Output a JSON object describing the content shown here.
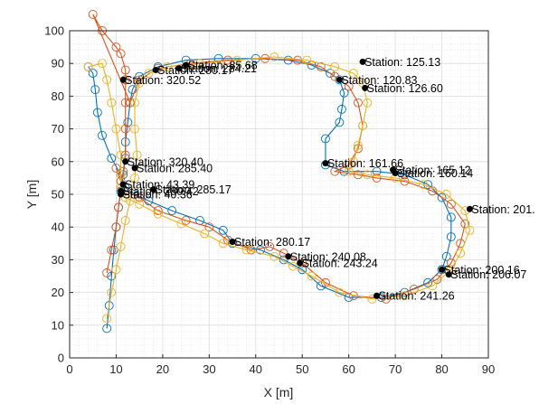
{
  "chart_data": {
    "type": "line",
    "title": "",
    "xlabel": "X [m]",
    "ylabel": "Y [m]",
    "xlim": [
      0,
      90
    ],
    "ylim": [
      0,
      100
    ],
    "xticks": [
      0,
      10,
      20,
      30,
      40,
      50,
      60,
      70,
      80,
      90
    ],
    "yticks": [
      0,
      10,
      20,
      30,
      40,
      50,
      60,
      70,
      80,
      90,
      100
    ],
    "grid": "major and minor",
    "legend": "none",
    "series": [
      {
        "color": "#0072BD",
        "marker": "circle",
        "points": [
          [
            8,
            9
          ],
          [
            8.5,
            16
          ],
          [
            9,
            25
          ],
          [
            9.5,
            33
          ],
          [
            10,
            40
          ],
          [
            10.5,
            46
          ],
          [
            11,
            51
          ],
          [
            11.5,
            56
          ],
          [
            12,
            61
          ],
          [
            12,
            66
          ],
          [
            12.5,
            72
          ],
          [
            13,
            78
          ],
          [
            13.5,
            82
          ],
          [
            15,
            86
          ],
          [
            19,
            89
          ],
          [
            25,
            91
          ],
          [
            32,
            91.5
          ],
          [
            40,
            91.5
          ],
          [
            47,
            91
          ],
          [
            52,
            89.5
          ],
          [
            56,
            87
          ],
          [
            58,
            85
          ],
          [
            59,
            81
          ],
          [
            58.5,
            76
          ],
          [
            58,
            72
          ],
          [
            55,
            67
          ],
          [
            55,
            59
          ],
          [
            59,
            57
          ],
          [
            66,
            57
          ],
          [
            72,
            56
          ],
          [
            77,
            53
          ],
          [
            80,
            49
          ],
          [
            82,
            43
          ],
          [
            82,
            37
          ],
          [
            81,
            31
          ],
          [
            80,
            27
          ],
          [
            77,
            23
          ],
          [
            72,
            20
          ],
          [
            67,
            18.5
          ],
          [
            60,
            18.5
          ],
          [
            54,
            22
          ],
          [
            50,
            27
          ],
          [
            46,
            30
          ],
          [
            41,
            33
          ],
          [
            35,
            35
          ],
          [
            33,
            39
          ],
          [
            28,
            42
          ],
          [
            22,
            45
          ],
          [
            17,
            48
          ],
          [
            14,
            50
          ],
          [
            12,
            52
          ],
          [
            11,
            56
          ],
          [
            9,
            61
          ],
          [
            7,
            68
          ],
          [
            6,
            75
          ],
          [
            5.5,
            82
          ],
          [
            5,
            87
          ],
          [
            4,
            89
          ]
        ]
      },
      {
        "color": "#D95319",
        "marker": "circle",
        "points": [
          [
            8,
            26
          ],
          [
            9,
            33
          ],
          [
            10,
            40
          ],
          [
            10.5,
            46
          ],
          [
            11,
            52
          ],
          [
            11.5,
            57
          ],
          [
            12,
            62
          ],
          [
            12,
            70
          ],
          [
            12,
            78
          ],
          [
            12,
            85
          ],
          [
            12,
            88
          ],
          [
            11,
            93
          ],
          [
            10,
            95
          ],
          [
            7,
            100
          ],
          [
            5,
            105
          ],
          [
            13,
            78
          ],
          [
            15,
            85
          ],
          [
            19,
            88.5
          ],
          [
            26,
            90
          ],
          [
            34,
            91
          ],
          [
            42,
            91.5
          ],
          [
            49,
            91
          ],
          [
            54,
            89
          ],
          [
            57,
            86
          ],
          [
            60,
            83
          ],
          [
            62,
            78
          ],
          [
            63,
            71
          ],
          [
            62,
            64
          ],
          [
            60,
            59
          ],
          [
            57,
            57
          ],
          [
            62,
            56
          ],
          [
            66,
            55
          ],
          [
            72,
            54
          ],
          [
            78,
            51
          ],
          [
            82,
            47
          ],
          [
            85,
            41
          ],
          [
            84,
            35
          ],
          [
            82,
            29
          ],
          [
            79,
            24
          ],
          [
            74,
            21
          ],
          [
            68,
            18
          ],
          [
            61,
            19
          ],
          [
            55,
            23
          ],
          [
            50,
            29
          ],
          [
            46,
            32
          ],
          [
            43,
            34
          ],
          [
            39,
            33
          ],
          [
            34,
            36
          ],
          [
            30,
            40
          ],
          [
            25,
            42
          ],
          [
            19,
            45
          ],
          [
            15,
            49
          ],
          [
            12,
            51
          ],
          [
            11,
            54
          ],
          [
            10,
            58
          ]
        ]
      },
      {
        "color": "#EDB120",
        "marker": "circle",
        "points": [
          [
            8,
            12
          ],
          [
            9,
            20
          ],
          [
            10,
            27
          ],
          [
            11,
            34
          ],
          [
            12,
            42
          ],
          [
            13,
            48
          ],
          [
            14,
            55
          ],
          [
            14.5,
            62
          ],
          [
            14,
            70
          ],
          [
            14,
            78
          ],
          [
            15,
            84
          ],
          [
            17,
            87
          ],
          [
            21,
            89
          ],
          [
            28,
            90
          ],
          [
            36,
            91
          ],
          [
            44,
            92
          ],
          [
            51,
            91
          ],
          [
            57,
            89
          ],
          [
            61,
            87
          ],
          [
            63,
            84
          ],
          [
            64,
            78
          ],
          [
            63,
            71
          ],
          [
            62,
            65
          ],
          [
            61,
            60
          ],
          [
            60,
            57
          ],
          [
            64,
            56
          ],
          [
            70,
            55
          ],
          [
            76,
            53
          ],
          [
            81,
            50
          ],
          [
            85,
            45
          ],
          [
            86,
            39
          ],
          [
            84,
            32
          ],
          [
            82,
            27
          ],
          [
            78,
            22
          ],
          [
            72,
            19
          ],
          [
            65,
            18
          ],
          [
            58,
            20
          ],
          [
            52,
            25
          ],
          [
            48,
            28
          ],
          [
            44,
            31
          ],
          [
            38,
            33
          ],
          [
            33,
            35
          ],
          [
            29,
            38
          ],
          [
            24,
            41
          ],
          [
            19,
            44
          ],
          [
            15,
            47
          ],
          [
            12,
            49
          ],
          [
            11,
            52
          ],
          [
            11,
            56
          ],
          [
            11,
            62
          ],
          [
            10,
            70
          ],
          [
            9,
            78
          ],
          [
            8,
            85
          ],
          [
            7,
            90
          ],
          [
            4,
            89
          ]
        ]
      }
    ],
    "stations": [
      {
        "label": "Station: 320.52",
        "x": 11.5,
        "y": 85
      },
      {
        "label": "Station: 280.17",
        "x": 18.5,
        "y": 88
      },
      {
        "label": "Station: 284.21",
        "x": 23.5,
        "y": 88.5
      },
      {
        "label": "Station: 85.68",
        "x": 25,
        "y": 89.5
      },
      {
        "label": "Station: 125.13",
        "x": 63,
        "y": 90.5
      },
      {
        "label": "Station: 120.83",
        "x": 58,
        "y": 85
      },
      {
        "label": "Station: 126.60",
        "x": 63.5,
        "y": 82.5
      },
      {
        "label": "Station: 320.40",
        "x": 12,
        "y": 60
      },
      {
        "label": "Station: 285.40",
        "x": 14,
        "y": 58
      },
      {
        "label": "Station: 161.66",
        "x": 55,
        "y": 59.5
      },
      {
        "label": "Station: 165.12",
        "x": 69.5,
        "y": 57.5
      },
      {
        "label": "Station: 160.14",
        "x": 70,
        "y": 56.5
      },
      {
        "label": "Station: 43.39",
        "x": 11.5,
        "y": 53
      },
      {
        "label": "Station: 285.17",
        "x": 18,
        "y": 51.5
      },
      {
        "label": "Station: 280.42",
        "x": 11,
        "y": 51
      },
      {
        "label": "Station: 40.36",
        "x": 11,
        "y": 50
      },
      {
        "label": "Station: 201.",
        "x": 86,
        "y": 45.5
      },
      {
        "label": "Station: 280.17",
        "x": 35,
        "y": 35.5
      },
      {
        "label": "Station: 240.08",
        "x": 47,
        "y": 31
      },
      {
        "label": "Station: 243.24",
        "x": 49.5,
        "y": 29
      },
      {
        "label": "Station: 200.16",
        "x": 80,
        "y": 27
      },
      {
        "label": "Station: 206.07",
        "x": 81.5,
        "y": 25.5
      },
      {
        "label": "Station: 241.26",
        "x": 66,
        "y": 19
      }
    ]
  }
}
